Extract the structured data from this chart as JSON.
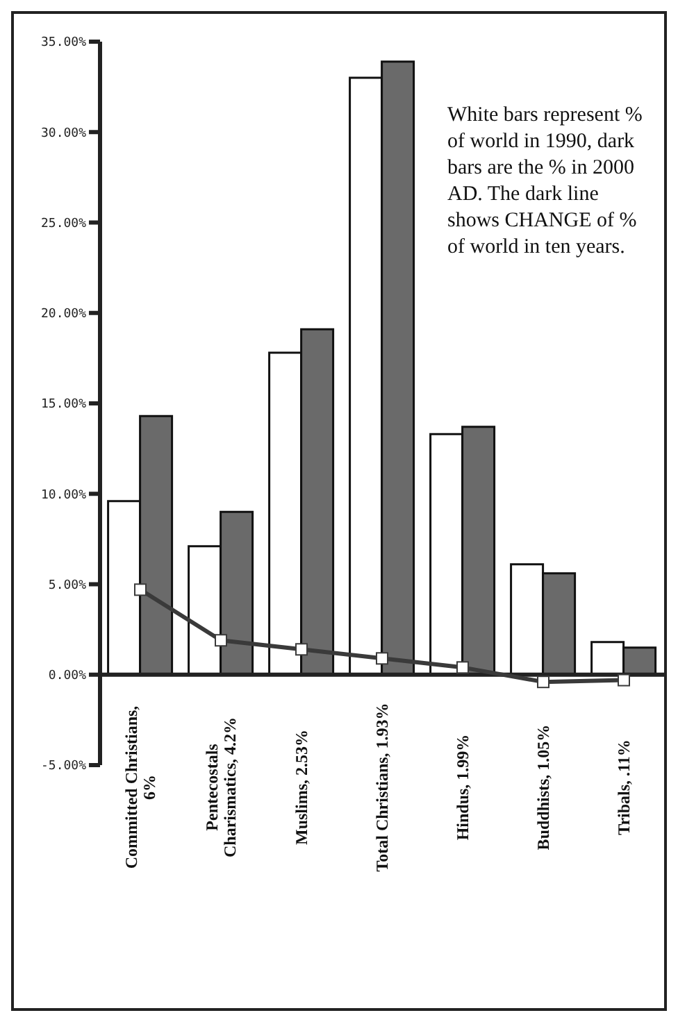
{
  "chart_data": {
    "type": "bar",
    "categories": [
      "Committed Christians, 6%",
      "Pentecostals Charismatics, 4.2%",
      "Muslims, 2.53%",
      "Total Christians, 1.93%",
      "Hindus, 1.99%",
      "Buddhists, 1.05%",
      "Tribals, .11%"
    ],
    "series": [
      {
        "color": "#ffffff",
        "values": [
          9.6,
          7.1,
          17.8,
          33.0,
          13.3,
          6.1,
          1.8
        ]
      },
      {
        "color": "#6a6a6a",
        "values": [
          14.3,
          9.0,
          19.1,
          33.9,
          13.7,
          5.6,
          1.5
        ]
      },
      {
        "type": "line",
        "color": "#3a3a3a",
        "marker": "square",
        "values": [
          4.7,
          1.9,
          1.4,
          0.9,
          0.4,
          -0.4,
          -0.3
        ]
      }
    ],
    "ylim": [
      -5,
      35
    ],
    "yticks": [
      {
        "value": -5,
        "label": "-5.00%"
      },
      {
        "value": 0,
        "label": "0.00%"
      },
      {
        "value": 5,
        "label": "5.00%"
      },
      {
        "value": 10,
        "label": "10.00%"
      },
      {
        "value": 15,
        "label": "15.00%"
      },
      {
        "value": 20,
        "label": "20.00%"
      },
      {
        "value": 25,
        "label": "25.00%"
      },
      {
        "value": 30,
        "label": "30.00%"
      },
      {
        "value": 35,
        "label": "35.00%"
      }
    ],
    "grid": false,
    "legend": false,
    "annotations": [
      "White bars represent % of world in 1990, dark bars are the % in 2000 AD. The dark line shows CHANGE of % of world in ten years."
    ]
  }
}
